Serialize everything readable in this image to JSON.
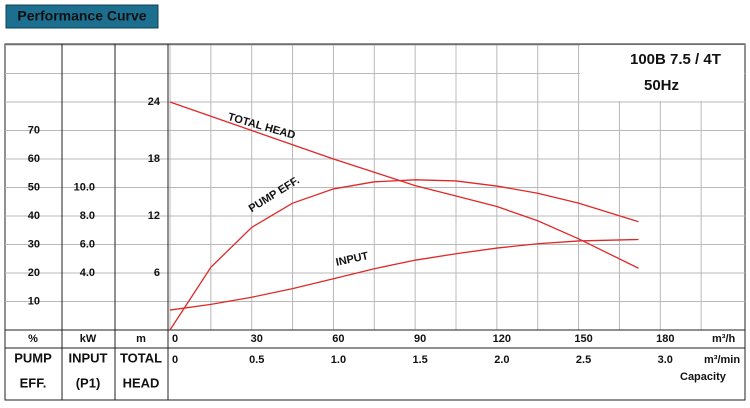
{
  "chart_data": {
    "type": "line",
    "title": "Performance Curve",
    "model": "100B 7.5 / 4T",
    "frequency": "50Hz",
    "x_label": "m³/h",
    "x2_label": "m³/min",
    "x2_title": "Capacity",
    "xlim": [
      0,
      210
    ],
    "xticks": [
      0,
      30,
      60,
      90,
      120,
      150,
      180
    ],
    "xminor": [
      15,
      45,
      75,
      105,
      135,
      165,
      195
    ],
    "x2lim": [
      0,
      3.5
    ],
    "x2ticks": [
      0,
      0.5,
      {
        "value": 1,
        "label": "1.0"
      },
      1.5,
      {
        "value": 2,
        "label": "2.0"
      },
      2.5,
      {
        "value": 3,
        "label": "3.0"
      }
    ],
    "axes": [
      {
        "id": "eff",
        "unit": "%",
        "name": [
          "PUMP",
          "EFF."
        ],
        "lim": [
          0,
          100
        ],
        "ticks": [
          10,
          20,
          30,
          40,
          50,
          60,
          70
        ]
      },
      {
        "id": "kw",
        "unit": "kW",
        "name": [
          "INPUT",
          "(P1)"
        ],
        "lim": [
          0,
          20
        ],
        "ticks": [
          {
            "value": 4,
            "label": "4.0"
          },
          {
            "value": 6,
            "label": "6.0"
          },
          {
            "value": 8,
            "label": "8.0"
          },
          {
            "value": 10,
            "label": "10.0"
          }
        ]
      },
      {
        "id": "head",
        "unit": "m",
        "name": [
          "TOTAL",
          "HEAD"
        ],
        "lim": [
          0,
          30
        ],
        "ticks": [
          6,
          12,
          18,
          24
        ]
      }
    ],
    "yminor": [
      3,
      9,
      15,
      21,
      27,
      30
    ],
    "grid": true,
    "x": [
      0,
      15,
      30,
      45,
      60,
      75,
      90,
      105,
      120,
      135,
      150,
      172
    ],
    "series": [
      {
        "name": "TOTAL HEAD",
        "axis": "head",
        "color": "#e02828",
        "values": [
          24,
          22.5,
          21,
          19.5,
          18,
          16.6,
          15.2,
          14.1,
          13,
          11.5,
          9.6,
          6.5
        ]
      },
      {
        "name": "PUMP EFF.",
        "axis": "eff",
        "color": "#e02828",
        "values": [
          0,
          22,
          36,
          44.5,
          49.5,
          52,
          52.7,
          52.3,
          50.5,
          48,
          44.5,
          38
        ]
      },
      {
        "name": "INPUT",
        "axis": "kw",
        "color": "#e02828",
        "values": [
          1.4,
          1.8,
          2.3,
          2.9,
          3.6,
          4.3,
          4.9,
          5.35,
          5.75,
          6.05,
          6.25,
          6.35
        ]
      }
    ]
  }
}
